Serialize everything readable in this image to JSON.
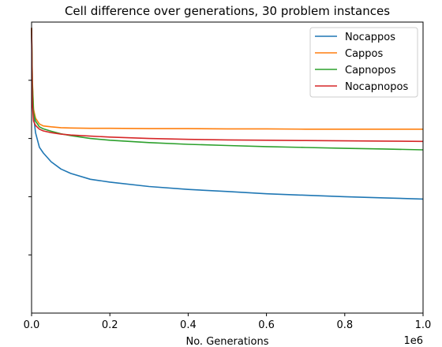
{
  "chart_data": {
    "type": "line",
    "title": "Cell difference over generations, 30 problem instances",
    "xlabel": "No. Generations",
    "ylabel": "",
    "x_offset_text": "1e6",
    "xlim": [
      0,
      1.0
    ],
    "ylim": [
      0,
      1.0
    ],
    "x_ticks": [
      0.0,
      0.2,
      0.4,
      0.6,
      0.8,
      1.0
    ],
    "x_tick_labels": [
      "0.0",
      "0.2",
      "0.4",
      "0.6",
      "0.8",
      "1.0"
    ],
    "y_ticks": [
      0.2,
      0.4,
      0.6,
      0.8
    ],
    "y_tick_labels": [
      "",
      "",
      "",
      ""
    ],
    "grid": false,
    "legend_position": "top-right",
    "x": [
      0,
      0.002,
      0.005,
      0.01,
      0.02,
      0.03,
      0.05,
      0.075,
      0.1,
      0.15,
      0.2,
      0.3,
      0.4,
      0.5,
      0.6,
      0.7,
      0.8,
      0.9,
      1.0
    ],
    "series": [
      {
        "name": "Nocappos",
        "color": "#1f77b4",
        "values": [
          0.98,
          0.78,
          0.68,
          0.62,
          0.57,
          0.55,
          0.52,
          0.495,
          0.48,
          0.46,
          0.45,
          0.435,
          0.425,
          0.418,
          0.41,
          0.405,
          0.4,
          0.396,
          0.392
        ]
      },
      {
        "name": "Cappos",
        "color": "#ff7f0e",
        "values": [
          0.98,
          0.8,
          0.7,
          0.67,
          0.65,
          0.643,
          0.64,
          0.637,
          0.636,
          0.635,
          0.635,
          0.634,
          0.634,
          0.633,
          0.633,
          0.632,
          0.632,
          0.632,
          0.632
        ]
      },
      {
        "name": "Capnopos",
        "color": "#2ca02c",
        "values": [
          0.98,
          0.79,
          0.69,
          0.66,
          0.64,
          0.633,
          0.625,
          0.616,
          0.61,
          0.6,
          0.594,
          0.586,
          0.58,
          0.576,
          0.572,
          0.569,
          0.566,
          0.564,
          0.561
        ]
      },
      {
        "name": "Nocapnopos",
        "color": "#d62728",
        "values": [
          0.98,
          0.72,
          0.66,
          0.645,
          0.632,
          0.626,
          0.62,
          0.615,
          0.612,
          0.608,
          0.605,
          0.6,
          0.597,
          0.595,
          0.594,
          0.593,
          0.592,
          0.591,
          0.59
        ]
      }
    ]
  }
}
